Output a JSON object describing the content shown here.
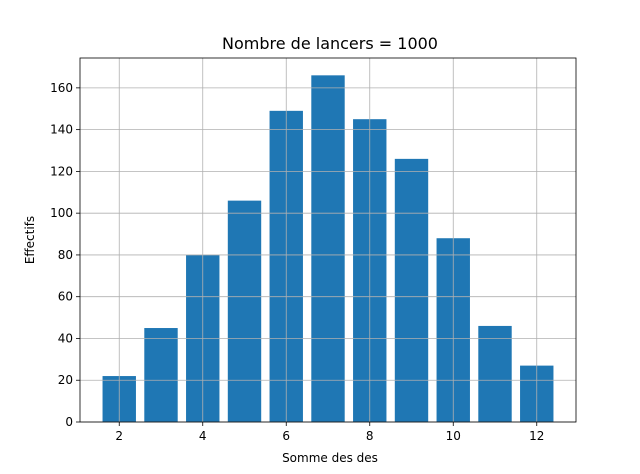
{
  "chart_data": {
    "type": "bar",
    "title": "Nombre de lancers = 1000",
    "x_label": "Somme des des",
    "y_label": "Effectifs",
    "x": [
      2,
      3,
      4,
      5,
      6,
      7,
      8,
      9,
      10,
      11,
      12
    ],
    "values": [
      22,
      45,
      80,
      106,
      149,
      166,
      145,
      126,
      88,
      46,
      27
    ],
    "color": "#1f77b4",
    "xlim": [
      1.06,
      12.94
    ],
    "xticks": [
      2,
      4,
      6,
      8,
      10,
      12
    ],
    "ylim": [
      0,
      174.3
    ],
    "yticks": [
      0,
      20,
      40,
      60,
      80,
      100,
      120,
      140,
      160
    ],
    "grid": true
  }
}
